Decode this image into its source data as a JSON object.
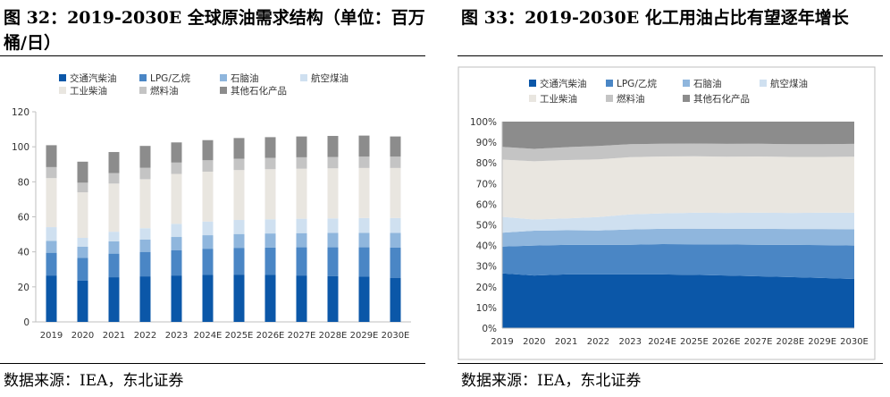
{
  "left": {
    "figure_label": "图 32：",
    "title": "2019-2030E 全球原油需求结构（单位：百万桶/日）",
    "source": "数据来源：IEA，东北证券"
  },
  "right": {
    "figure_label": "图 33：",
    "title": "2019-2030E 化工用油占比有望逐年增长",
    "source": "数据来源：IEA，东北证券"
  },
  "colors": {
    "交通汽柴油": "#0b57a8",
    "LPG/乙烷": "#4a86c5",
    "石脑油": "#8fb6dd",
    "航空煤油": "#cfe0f0",
    "工业柴油": "#e9e6e0",
    "燃料油": "#c4c4c4",
    "其他石化产品": "#8c8c8c"
  },
  "chart_data": [
    {
      "type": "bar",
      "stacked": true,
      "categories": [
        "2019",
        "2020",
        "2021",
        "2022",
        "2023",
        "2024E",
        "2025E",
        "2026E",
        "2027E",
        "2028E",
        "2029E",
        "2030E"
      ],
      "ylim": [
        0,
        120
      ],
      "yticks": [
        0,
        20,
        40,
        60,
        80,
        100,
        120
      ],
      "series": [
        {
          "name": "交通汽柴油",
          "values": [
            26.5,
            23.5,
            25.5,
            26.0,
            26.5,
            26.8,
            27.0,
            26.8,
            26.5,
            26.2,
            25.8,
            25.2
          ]
        },
        {
          "name": "LPG/乙烷",
          "values": [
            13.0,
            13.0,
            13.5,
            14.0,
            14.5,
            15.0,
            15.3,
            15.7,
            16.1,
            16.4,
            16.8,
            17.2
          ]
        },
        {
          "name": "石脑油",
          "values": [
            6.8,
            6.5,
            7.0,
            7.0,
            7.5,
            7.7,
            7.9,
            8.0,
            8.1,
            8.2,
            8.3,
            8.4
          ]
        },
        {
          "name": "航空煤油",
          "values": [
            7.8,
            5.0,
            5.5,
            6.5,
            7.5,
            7.8,
            8.0,
            8.1,
            8.2,
            8.3,
            8.4,
            8.5
          ]
        },
        {
          "name": "工业柴油",
          "values": [
            28.0,
            26.0,
            27.5,
            28.0,
            28.5,
            28.5,
            28.5,
            28.6,
            28.6,
            28.6,
            28.6,
            28.6
          ]
        },
        {
          "name": "燃料油",
          "values": [
            6.3,
            5.5,
            6.0,
            6.5,
            6.5,
            6.5,
            6.5,
            6.5,
            6.5,
            6.5,
            6.5,
            6.5
          ]
        },
        {
          "name": "其他石化产品",
          "values": [
            12.5,
            12.0,
            12.0,
            12.5,
            11.5,
            11.5,
            11.8,
            11.8,
            11.9,
            12.0,
            12.0,
            11.5
          ]
        }
      ]
    },
    {
      "type": "area",
      "stacked": true,
      "percent": true,
      "categories": [
        "2019",
        "2020",
        "2021",
        "2022",
        "2023",
        "2024E",
        "2025E",
        "2026E",
        "2027E",
        "2028E",
        "2029E",
        "2030E"
      ],
      "ylim": [
        0,
        100
      ],
      "yticks": [
        "0%",
        "10%",
        "20%",
        "30%",
        "40%",
        "50%",
        "60%",
        "70%",
        "80%",
        "90%",
        "100%"
      ],
      "series": [
        {
          "name": "交通汽柴油",
          "values": [
            26.5,
            25.5,
            26.0,
            26.0,
            26.0,
            26.0,
            25.8,
            25.5,
            25.1,
            24.7,
            24.3,
            23.8
          ]
        },
        {
          "name": "LPG/乙烷",
          "values": [
            13.0,
            14.5,
            14.3,
            14.3,
            14.4,
            14.7,
            14.8,
            15.0,
            15.3,
            15.6,
            15.9,
            16.2
          ]
        },
        {
          "name": "石脑油",
          "values": [
            6.7,
            7.2,
            7.1,
            7.0,
            7.4,
            7.4,
            7.6,
            7.6,
            7.7,
            7.7,
            7.8,
            7.9
          ]
        },
        {
          "name": "航空煤油",
          "values": [
            7.7,
            5.4,
            5.7,
            6.5,
            7.3,
            7.5,
            7.7,
            7.7,
            7.8,
            7.8,
            7.9,
            8.0
          ]
        },
        {
          "name": "工业柴油",
          "values": [
            27.7,
            28.2,
            28.3,
            27.9,
            27.7,
            27.5,
            27.3,
            27.2,
            27.2,
            27.1,
            27.0,
            27.1
          ]
        },
        {
          "name": "燃料油",
          "values": [
            6.2,
            6.0,
            6.2,
            6.5,
            6.3,
            6.2,
            6.2,
            6.2,
            6.2,
            6.2,
            6.2,
            6.2
          ]
        },
        {
          "name": "其他石化产品",
          "values": [
            12.2,
            13.2,
            12.4,
            11.8,
            10.9,
            10.7,
            10.6,
            10.8,
            10.7,
            10.9,
            10.9,
            10.8
          ]
        }
      ]
    }
  ]
}
